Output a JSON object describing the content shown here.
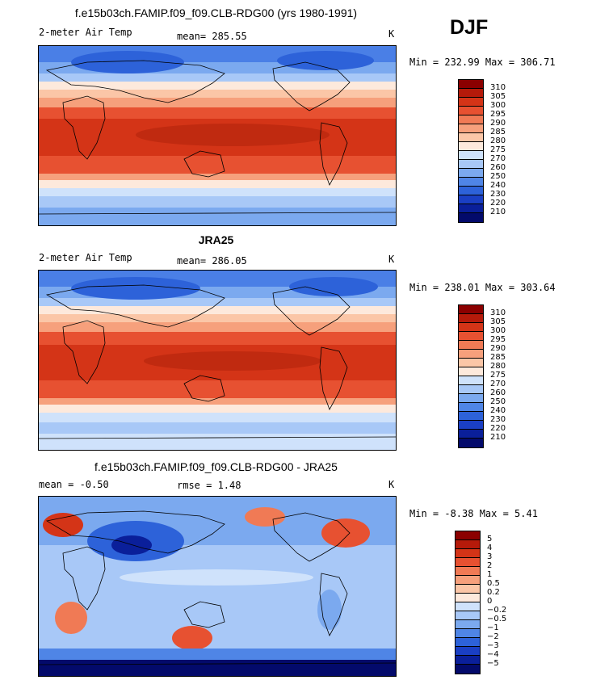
{
  "season": "DJF",
  "panels": [
    {
      "title": "f.e15b03ch.FAMIP.f09_f09.CLB-RDG00 (yrs 1980-1991)",
      "left_label": "2-meter Air Temp",
      "center_label": "mean= 285.55",
      "units": "K",
      "minmax": "Min = 232.99 Max = 306.71",
      "levels": [
        "310",
        "305",
        "300",
        "295",
        "290",
        "285",
        "280",
        "275",
        "270",
        "260",
        "250",
        "240",
        "230",
        "220",
        "210"
      ],
      "colors": [
        "#8b0000",
        "#b51a0a",
        "#d43417",
        "#e75131",
        "#f07a55",
        "#f6a07c",
        "#fbc6a7",
        "#fde9dc",
        "#cfe2fb",
        "#a8c8f7",
        "#7ba9ef",
        "#4f85e6",
        "#2d62d9",
        "#1a3fc4",
        "#0a1f9a",
        "#030a6b"
      ]
    },
    {
      "title": "JRA25",
      "left_label": "2-meter Air Temp",
      "center_label": "mean= 286.05",
      "units": "K",
      "minmax": "Min = 238.01 Max = 303.64",
      "levels": [
        "310",
        "305",
        "300",
        "295",
        "290",
        "285",
        "280",
        "275",
        "270",
        "260",
        "250",
        "240",
        "230",
        "220",
        "210"
      ],
      "colors": [
        "#8b0000",
        "#b51a0a",
        "#d43417",
        "#e75131",
        "#f07a55",
        "#f6a07c",
        "#fbc6a7",
        "#fde9dc",
        "#cfe2fb",
        "#a8c8f7",
        "#7ba9ef",
        "#4f85e6",
        "#2d62d9",
        "#1a3fc4",
        "#0a1f9a",
        "#030a6b"
      ]
    },
    {
      "title": "f.e15b03ch.FAMIP.f09_f09.CLB-RDG00 - JRA25",
      "left_label": "mean =   -0.50",
      "center_label": "rmse =    1.48",
      "units": "K",
      "minmax": "Min =  -8.38 Max =   5.41",
      "levels": [
        "5",
        "4",
        "3",
        "2",
        "1",
        "0.5",
        "0.2",
        "0",
        "-0.2",
        "-0.5",
        "-1",
        "-2",
        "-3",
        "-4",
        "-5"
      ],
      "colors": [
        "#8b0000",
        "#b51a0a",
        "#d43417",
        "#e75131",
        "#f07a55",
        "#f6a07c",
        "#fbc6a7",
        "#fde9dc",
        "#cfe2fb",
        "#a8c8f7",
        "#7ba9ef",
        "#4f85e6",
        "#2d62d9",
        "#1a3fc4",
        "#0a1f9a",
        "#030a6b"
      ]
    }
  ]
}
